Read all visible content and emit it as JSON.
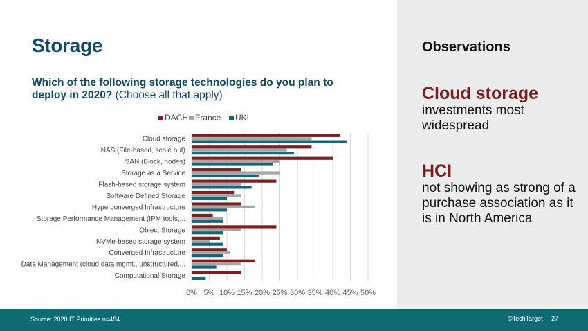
{
  "slide": {
    "title": "Storage",
    "question_main": "Which of the following storage technologies do you plan to deploy in 2020?",
    "question_note": "(Choose all that apply)"
  },
  "observations": {
    "title": "Observations",
    "items": [
      {
        "head": "Cloud storage",
        "text": "investments most widespread"
      },
      {
        "head": "HCI",
        "text": "not showing as strong of a purchase association as it is in North America"
      }
    ]
  },
  "footer": {
    "source": "Source:  2020 IT Priorities n=484",
    "brand": "©TechTarget",
    "page": "27"
  },
  "chart_data": {
    "type": "bar",
    "orientation": "horizontal",
    "categories": [
      "Cloud storage",
      "NAS (File-based, scale out)",
      "SAN (Block, nodes)",
      "Storage as a Service",
      "Flash-based storage system",
      "Software Defined Storage",
      "Hyperconverged Infrastructure",
      "Storage Performance Management (IPM tools,...",
      "Object Storage",
      "NVMe-based storage system",
      "Converged Infrastructure",
      "Data Management (cloud data mgmt., unstructured,...",
      "Computational Storage"
    ],
    "series": [
      {
        "name": "DACH",
        "color": "#7b1f1f",
        "values": [
          42,
          34,
          40,
          14,
          24,
          12,
          14,
          6,
          24,
          8,
          10,
          18,
          14
        ]
      },
      {
        "name": "France",
        "color": "#a6a6a6",
        "values": [
          34,
          27,
          25,
          25,
          14,
          14,
          18,
          9,
          14,
          5,
          11,
          14,
          0
        ]
      },
      {
        "name": "UKI",
        "color": "#1a6478",
        "values": [
          44,
          29,
          23,
          19,
          17,
          10,
          10,
          9,
          9,
          9,
          9,
          7,
          4
        ]
      }
    ],
    "xlim": [
      0,
      50
    ],
    "xticks": [
      "0%",
      "5%",
      "10%",
      "15%",
      "20%",
      "25%",
      "30%",
      "35%",
      "40%",
      "45%",
      "50%"
    ],
    "legend_position": "top",
    "grid": true
  }
}
